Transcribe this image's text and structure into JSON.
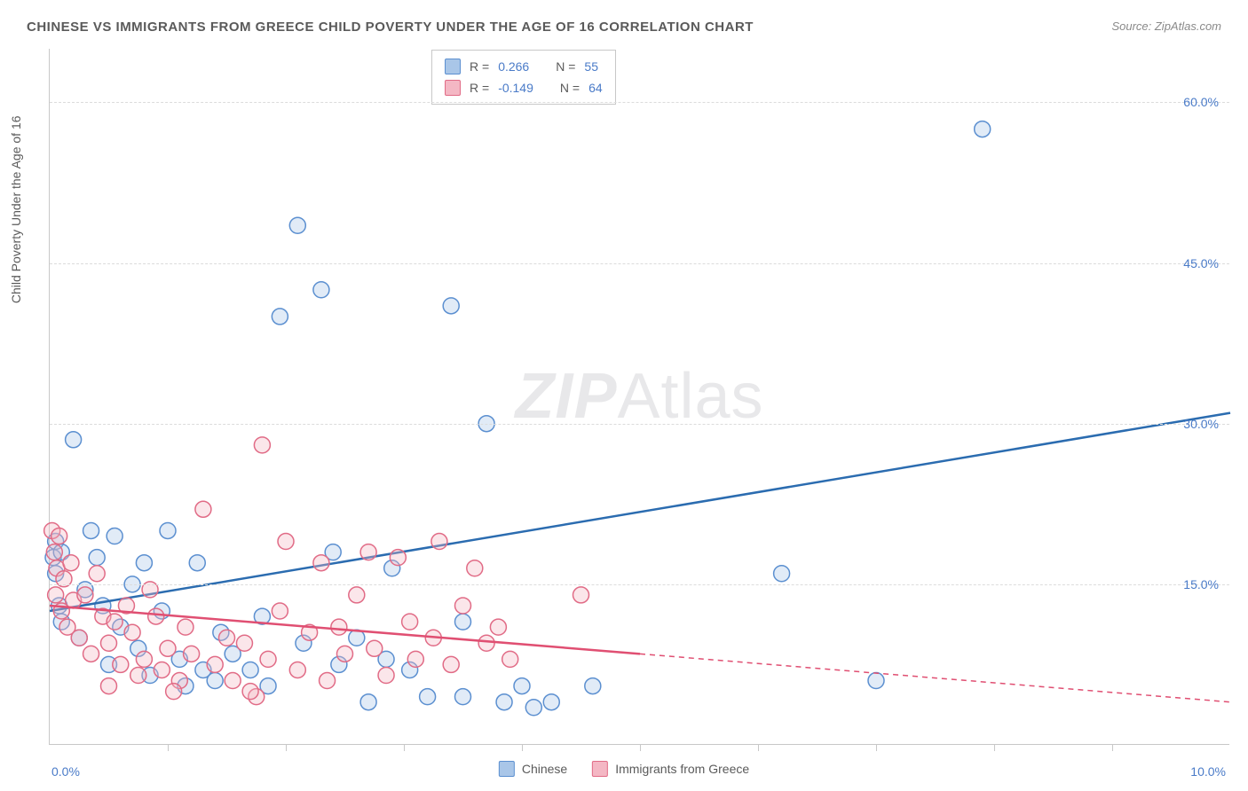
{
  "title": "CHINESE VS IMMIGRANTS FROM GREECE CHILD POVERTY UNDER THE AGE OF 16 CORRELATION CHART",
  "source": "Source: ZipAtlas.com",
  "ylabel": "Child Poverty Under the Age of 16",
  "watermark_a": "ZIP",
  "watermark_b": "Atlas",
  "chart": {
    "type": "scatter",
    "background_color": "#ffffff",
    "grid_color": "#dcdcdc",
    "axis_color": "#c8c8c8",
    "tick_color": "#4a7bc8",
    "xlim": [
      0,
      10
    ],
    "ylim": [
      0,
      65
    ],
    "yticks": [
      {
        "val": 15.0,
        "label": "15.0%"
      },
      {
        "val": 30.0,
        "label": "30.0%"
      },
      {
        "val": 45.0,
        "label": "45.0%"
      },
      {
        "val": 60.0,
        "label": "60.0%"
      }
    ],
    "xtick_positions": [
      1.0,
      2.0,
      3.0,
      4.0,
      5.0,
      6.0,
      7.0,
      8.0,
      9.0
    ],
    "xstart_label": "0.0%",
    "xend_label": "10.0%",
    "series": [
      {
        "key": "chinese",
        "label": "Chinese",
        "color_fill": "#a9c6e8",
        "color_stroke": "#5b8fd0",
        "line_color": "#2b6cb0",
        "R": "0.266",
        "N": "55",
        "trend": {
          "x1": 0.0,
          "y1": 12.5,
          "x2": 10.0,
          "y2": 31.0,
          "solid_until": 10.0
        },
        "marker_radius": 9,
        "points": [
          [
            0.03,
            17.5
          ],
          [
            0.05,
            19.0
          ],
          [
            0.05,
            16.0
          ],
          [
            0.08,
            13.0
          ],
          [
            0.1,
            11.5
          ],
          [
            0.1,
            18.0
          ],
          [
            0.2,
            28.5
          ],
          [
            0.25,
            10.0
          ],
          [
            0.3,
            14.5
          ],
          [
            0.35,
            20.0
          ],
          [
            0.4,
            17.5
          ],
          [
            0.45,
            13.0
          ],
          [
            0.5,
            7.5
          ],
          [
            0.55,
            19.5
          ],
          [
            0.6,
            11.0
          ],
          [
            0.7,
            15.0
          ],
          [
            0.75,
            9.0
          ],
          [
            0.8,
            17.0
          ],
          [
            0.85,
            6.5
          ],
          [
            0.95,
            12.5
          ],
          [
            1.0,
            20.0
          ],
          [
            1.1,
            8.0
          ],
          [
            1.15,
            5.5
          ],
          [
            1.25,
            17.0
          ],
          [
            1.3,
            7.0
          ],
          [
            1.4,
            6.0
          ],
          [
            1.45,
            10.5
          ],
          [
            1.55,
            8.5
          ],
          [
            1.7,
            7.0
          ],
          [
            1.8,
            12.0
          ],
          [
            1.85,
            5.5
          ],
          [
            1.95,
            40.0
          ],
          [
            2.1,
            48.5
          ],
          [
            2.15,
            9.5
          ],
          [
            2.3,
            42.5
          ],
          [
            2.4,
            18.0
          ],
          [
            2.45,
            7.5
          ],
          [
            2.6,
            10.0
          ],
          [
            2.7,
            4.0
          ],
          [
            2.85,
            8.0
          ],
          [
            2.9,
            16.5
          ],
          [
            3.05,
            7.0
          ],
          [
            3.2,
            4.5
          ],
          [
            3.4,
            41.0
          ],
          [
            3.5,
            11.5
          ],
          [
            3.7,
            30.0
          ],
          [
            3.85,
            4.0
          ],
          [
            4.0,
            5.5
          ],
          [
            4.1,
            3.5
          ],
          [
            4.25,
            4.0
          ],
          [
            4.6,
            5.5
          ],
          [
            6.2,
            16.0
          ],
          [
            7.0,
            6.0
          ],
          [
            7.9,
            57.5
          ],
          [
            3.5,
            4.5
          ]
        ]
      },
      {
        "key": "greece",
        "label": "Immigrants from Greece",
        "color_fill": "#f4b7c4",
        "color_stroke": "#e16b86",
        "line_color": "#e04f72",
        "R": "-0.149",
        "N": "64",
        "trend": {
          "x1": 0.0,
          "y1": 13.0,
          "x2": 10.0,
          "y2": 4.0,
          "solid_until": 5.0
        },
        "marker_radius": 9,
        "points": [
          [
            0.02,
            20.0
          ],
          [
            0.04,
            18.0
          ],
          [
            0.05,
            14.0
          ],
          [
            0.06,
            16.5
          ],
          [
            0.08,
            19.5
          ],
          [
            0.1,
            12.5
          ],
          [
            0.12,
            15.5
          ],
          [
            0.15,
            11.0
          ],
          [
            0.18,
            17.0
          ],
          [
            0.2,
            13.5
          ],
          [
            0.25,
            10.0
          ],
          [
            0.3,
            14.0
          ],
          [
            0.35,
            8.5
          ],
          [
            0.4,
            16.0
          ],
          [
            0.45,
            12.0
          ],
          [
            0.5,
            9.5
          ],
          [
            0.55,
            11.5
          ],
          [
            0.6,
            7.5
          ],
          [
            0.65,
            13.0
          ],
          [
            0.7,
            10.5
          ],
          [
            0.75,
            6.5
          ],
          [
            0.8,
            8.0
          ],
          [
            0.85,
            14.5
          ],
          [
            0.9,
            12.0
          ],
          [
            0.95,
            7.0
          ],
          [
            1.0,
            9.0
          ],
          [
            1.1,
            6.0
          ],
          [
            1.15,
            11.0
          ],
          [
            1.2,
            8.5
          ],
          [
            1.3,
            22.0
          ],
          [
            1.4,
            7.5
          ],
          [
            1.5,
            10.0
          ],
          [
            1.55,
            6.0
          ],
          [
            1.65,
            9.5
          ],
          [
            1.75,
            4.5
          ],
          [
            1.8,
            28.0
          ],
          [
            1.85,
            8.0
          ],
          [
            1.95,
            12.5
          ],
          [
            2.0,
            19.0
          ],
          [
            2.1,
            7.0
          ],
          [
            2.2,
            10.5
          ],
          [
            2.3,
            17.0
          ],
          [
            2.35,
            6.0
          ],
          [
            2.45,
            11.0
          ],
          [
            2.5,
            8.5
          ],
          [
            2.6,
            14.0
          ],
          [
            2.7,
            18.0
          ],
          [
            2.75,
            9.0
          ],
          [
            2.85,
            6.5
          ],
          [
            2.95,
            17.5
          ],
          [
            3.05,
            11.5
          ],
          [
            3.1,
            8.0
          ],
          [
            3.25,
            10.0
          ],
          [
            3.3,
            19.0
          ],
          [
            3.4,
            7.5
          ],
          [
            3.5,
            13.0
          ],
          [
            3.6,
            16.5
          ],
          [
            3.7,
            9.5
          ],
          [
            3.8,
            11.0
          ],
          [
            3.9,
            8.0
          ],
          [
            4.5,
            14.0
          ],
          [
            1.05,
            5.0
          ],
          [
            0.5,
            5.5
          ],
          [
            1.7,
            5.0
          ]
        ]
      }
    ]
  },
  "legend_top": {
    "r_label": "R  =",
    "n_label": "N  ="
  }
}
